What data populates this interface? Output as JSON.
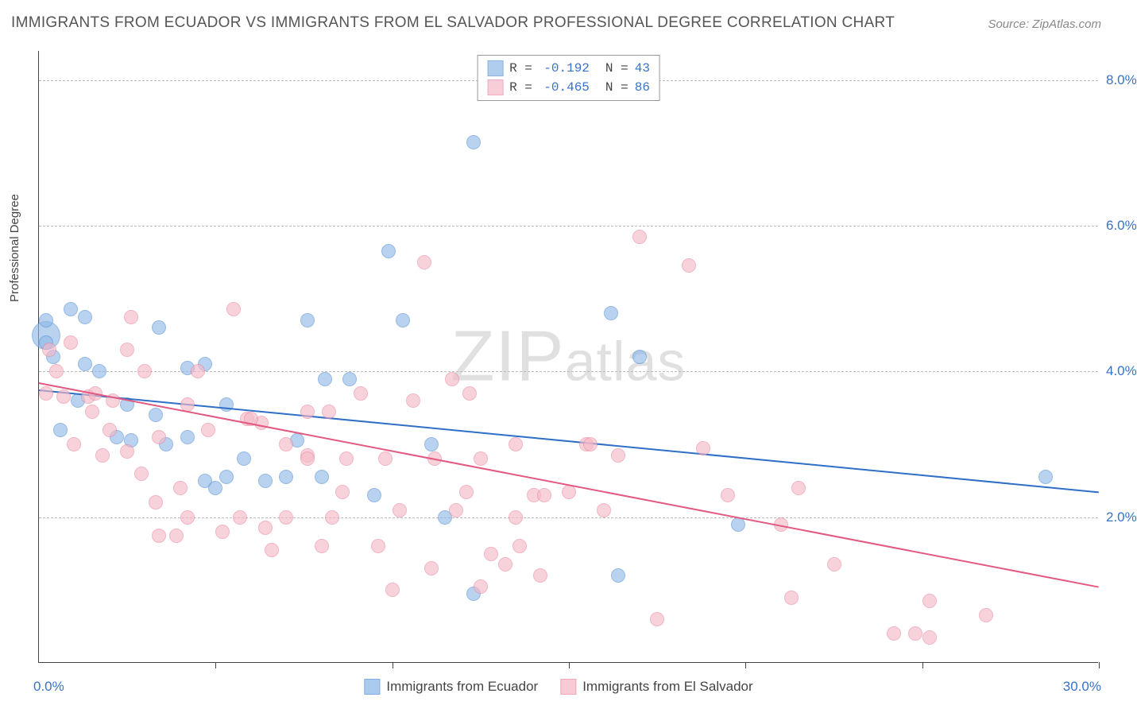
{
  "title": "IMMIGRANTS FROM ECUADOR VS IMMIGRANTS FROM EL SALVADOR PROFESSIONAL DEGREE CORRELATION CHART",
  "source": "Source: ZipAtlas.com",
  "ylabel": "Professional Degree",
  "watermark_a": "ZIP",
  "watermark_b": "atlas",
  "chart": {
    "type": "scatter",
    "xlim": [
      0,
      30
    ],
    "ylim": [
      0,
      8.4
    ],
    "xticks": [
      5,
      10,
      15,
      20,
      25,
      30
    ],
    "yticks": [
      2.0,
      4.0,
      6.0,
      8.0
    ],
    "ytick_labels": [
      "2.0%",
      "4.0%",
      "6.0%",
      "8.0%"
    ],
    "xlabel_start": "0.0%",
    "xlabel_end": "30.0%",
    "grid_color": "#bbbbbb",
    "axis_color": "#444444",
    "background_color": "#ffffff",
    "label_color": "#3773c8",
    "point_radius": 9,
    "point_stroke_width": 1,
    "point_fill_opacity": 0.28
  },
  "series": [
    {
      "name": "Immigrants from Ecuador",
      "color_fill": "#8fb9e8",
      "color_stroke": "#5a93d4",
      "R": "-0.192",
      "N": "43",
      "trend": {
        "x1": 0,
        "y1": 3.75,
        "x2": 30,
        "y2": 2.35,
        "color": "#2f6fc7",
        "width": 2
      },
      "points": [
        [
          0.2,
          4.5,
          18
        ],
        [
          0.2,
          4.7
        ],
        [
          0.2,
          4.4
        ],
        [
          0.9,
          4.85
        ],
        [
          1.3,
          4.75
        ],
        [
          0.4,
          4.2
        ],
        [
          0.6,
          3.2
        ],
        [
          1.1,
          3.6
        ],
        [
          1.3,
          4.1
        ],
        [
          2.2,
          3.1
        ],
        [
          2.6,
          3.05
        ],
        [
          2.5,
          3.55
        ],
        [
          3.4,
          4.6
        ],
        [
          1.7,
          4.0
        ],
        [
          3.3,
          3.4
        ],
        [
          4.7,
          4.1
        ],
        [
          4.2,
          4.05
        ],
        [
          3.6,
          3.0
        ],
        [
          4.2,
          3.1
        ],
        [
          4.7,
          2.5
        ],
        [
          5.3,
          3.55
        ],
        [
          5.8,
          2.8
        ],
        [
          5.3,
          2.55
        ],
        [
          6.4,
          2.5
        ],
        [
          7.0,
          2.55
        ],
        [
          7.3,
          3.05
        ],
        [
          8.0,
          2.55
        ],
        [
          8.1,
          3.9
        ],
        [
          8.8,
          3.9
        ],
        [
          9.5,
          2.3
        ],
        [
          10.3,
          4.7
        ],
        [
          9.9,
          5.65
        ],
        [
          11.1,
          3.0
        ],
        [
          11.5,
          2.0
        ],
        [
          12.3,
          7.15
        ],
        [
          12.3,
          0.95
        ],
        [
          16.2,
          4.8
        ],
        [
          17.0,
          4.2
        ],
        [
          16.4,
          1.2
        ],
        [
          19.8,
          1.9
        ],
        [
          28.5,
          2.55
        ],
        [
          7.6,
          4.7
        ],
        [
          5.0,
          2.4
        ]
      ]
    },
    {
      "name": "Immigrants from El Salvador",
      "color_fill": "#f5b9c7",
      "color_stroke": "#e98ba3",
      "R": "-0.465",
      "N": "86",
      "trend": {
        "x1": 0,
        "y1": 3.85,
        "x2": 30,
        "y2": 1.05,
        "color": "#e25a81",
        "width": 2
      },
      "points": [
        [
          0.3,
          4.3
        ],
        [
          0.5,
          4.0
        ],
        [
          0.2,
          3.7
        ],
        [
          0.7,
          3.65
        ],
        [
          0.9,
          4.4
        ],
        [
          1.4,
          3.65
        ],
        [
          1.5,
          3.45
        ],
        [
          1.0,
          3.0
        ],
        [
          1.6,
          3.7
        ],
        [
          2.1,
          3.6
        ],
        [
          2.5,
          4.3
        ],
        [
          2.6,
          4.75
        ],
        [
          2.5,
          2.9
        ],
        [
          2.9,
          2.6
        ],
        [
          3.0,
          4.0
        ],
        [
          3.4,
          3.1
        ],
        [
          3.3,
          2.2
        ],
        [
          3.9,
          1.75
        ],
        [
          3.4,
          1.75
        ],
        [
          4.0,
          2.4
        ],
        [
          4.5,
          4.0
        ],
        [
          4.2,
          3.55
        ],
        [
          5.2,
          1.8
        ],
        [
          5.5,
          4.85
        ],
        [
          5.9,
          3.35
        ],
        [
          5.7,
          2.0
        ],
        [
          6.3,
          3.3
        ],
        [
          6.4,
          1.85
        ],
        [
          6.6,
          1.55
        ],
        [
          7.0,
          3.0
        ],
        [
          7.0,
          2.0
        ],
        [
          7.6,
          3.45
        ],
        [
          7.6,
          2.85
        ],
        [
          7.6,
          2.8
        ],
        [
          8.2,
          3.45
        ],
        [
          8.3,
          2.0
        ],
        [
          8.7,
          2.8
        ],
        [
          8.6,
          2.35
        ],
        [
          9.1,
          3.7
        ],
        [
          9.6,
          1.6
        ],
        [
          9.8,
          2.8
        ],
        [
          10.2,
          2.1
        ],
        [
          10.6,
          3.6
        ],
        [
          11.1,
          1.3
        ],
        [
          10.9,
          5.5
        ],
        [
          11.2,
          2.8
        ],
        [
          11.7,
          3.9
        ],
        [
          11.8,
          2.1
        ],
        [
          12.1,
          2.35
        ],
        [
          12.2,
          3.7
        ],
        [
          12.5,
          1.05
        ],
        [
          12.5,
          2.8
        ],
        [
          12.8,
          1.5
        ],
        [
          13.2,
          1.35
        ],
        [
          13.5,
          3.0
        ],
        [
          13.6,
          1.6
        ],
        [
          14.0,
          2.3
        ],
        [
          14.3,
          2.3
        ],
        [
          14.2,
          1.2
        ],
        [
          15.0,
          2.35
        ],
        [
          15.5,
          3.0
        ],
        [
          16.0,
          2.1
        ],
        [
          16.4,
          2.85
        ],
        [
          17.0,
          5.85
        ],
        [
          17.5,
          0.6
        ],
        [
          18.4,
          5.45
        ],
        [
          18.8,
          2.95
        ],
        [
          19.5,
          2.3
        ],
        [
          21.0,
          1.9
        ],
        [
          21.5,
          2.4
        ],
        [
          21.3,
          0.9
        ],
        [
          22.5,
          1.35
        ],
        [
          24.2,
          0.4
        ],
        [
          24.8,
          0.4
        ],
        [
          25.2,
          0.85
        ],
        [
          25.2,
          0.35
        ],
        [
          26.8,
          0.65
        ],
        [
          13.5,
          2.0
        ],
        [
          6.0,
          3.35
        ],
        [
          2.0,
          3.2
        ],
        [
          1.8,
          2.85
        ],
        [
          4.8,
          3.2
        ],
        [
          8.0,
          1.6
        ],
        [
          4.2,
          2.0
        ],
        [
          15.6,
          3.0
        ],
        [
          10.0,
          1.0
        ]
      ]
    }
  ],
  "legend_labels": {
    "r_label": "R =",
    "n_label": "N ="
  }
}
